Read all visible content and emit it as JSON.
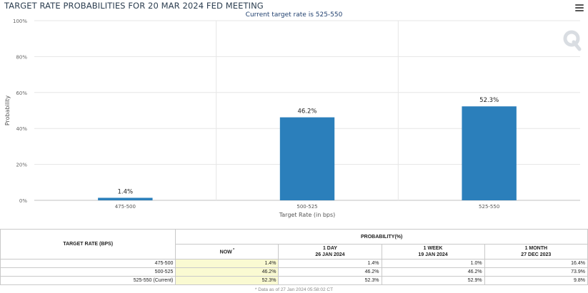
{
  "header": {
    "title": "TARGET RATE PROBABILITIES FOR 20 MAR 2024 FED MEETING",
    "subtitle": "Current target rate is 525-550"
  },
  "chart_data": {
    "type": "bar",
    "categories": [
      "475-500",
      "500-525",
      "525-550"
    ],
    "values": [
      1.4,
      46.2,
      52.3
    ],
    "value_labels": [
      "1.4%",
      "46.2%",
      "52.3%"
    ],
    "xlabel": "Target Rate (in bps)",
    "ylabel": "Probability",
    "ylim": [
      0,
      100
    ],
    "yticks": [
      0,
      20,
      40,
      60,
      80,
      100
    ],
    "ytick_labels": [
      "0%",
      "20%",
      "40%",
      "60%",
      "80%",
      "100%"
    ],
    "bar_color": "#2b7fbb",
    "grid": true
  },
  "table": {
    "rate_header": "TARGET RATE (BPS)",
    "prob_header": "PROBABILITY(%)",
    "columns": [
      {
        "line1": "NOW",
        "line2": "",
        "sup": "*"
      },
      {
        "line1": "1 DAY",
        "line2": "26 JAN 2024",
        "sup": ""
      },
      {
        "line1": "1 WEEK",
        "line2": "19 JAN 2024",
        "sup": ""
      },
      {
        "line1": "1 MONTH",
        "line2": "27 DEC 2023",
        "sup": ""
      }
    ],
    "rows": [
      {
        "rate": "475-500",
        "values": [
          "1.4%",
          "1.4%",
          "1.0%",
          "16.4%"
        ]
      },
      {
        "rate": "500-525",
        "values": [
          "46.2%",
          "46.2%",
          "46.2%",
          "73.9%"
        ]
      },
      {
        "rate": "525-550 (Current)",
        "values": [
          "52.3%",
          "52.3%",
          "52.9%",
          "9.8%"
        ]
      }
    ],
    "note": "* Data as of 27 Jan 2024 05:58:02 CT",
    "highlight_color": "#fafad2"
  }
}
